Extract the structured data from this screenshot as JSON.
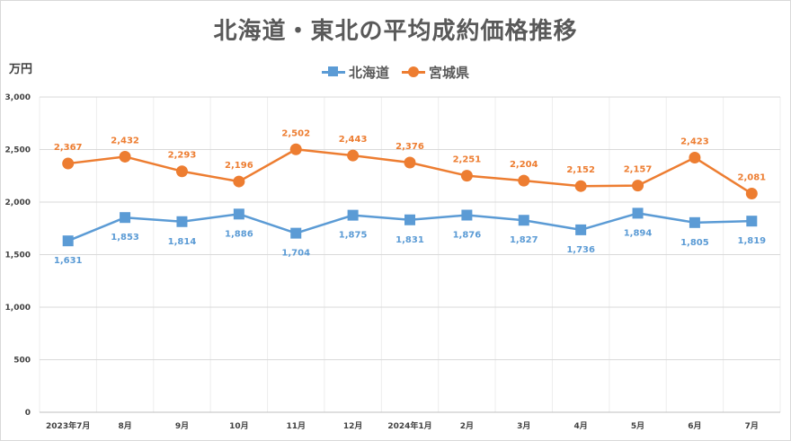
{
  "chart_data": {
    "type": "line",
    "title": "北海道・東北の平均成約価格推移",
    "ylabel": "万円",
    "xlabel": "",
    "categories": [
      "2023年7月",
      "8月",
      "9月",
      "10月",
      "11月",
      "12月",
      "2024年1月",
      "2月",
      "3月",
      "4月",
      "5月",
      "6月",
      "7月"
    ],
    "ylim": [
      0,
      3000
    ],
    "yticks": [
      0,
      500,
      1000,
      1500,
      2000,
      2500,
      3000
    ],
    "ytick_labels": [
      "0",
      "500",
      "1,000",
      "1,500",
      "2,000",
      "2,500",
      "3,000"
    ],
    "grid": true,
    "legend": "top-center",
    "data_labels": true,
    "series": [
      {
        "name": "北海道",
        "values": [
          1631,
          1853,
          1814,
          1886,
          1704,
          1875,
          1831,
          1876,
          1827,
          1736,
          1894,
          1805,
          1819
        ],
        "color": "#5B9BD5",
        "marker": "square",
        "label_position": "below"
      },
      {
        "name": "宮城県",
        "values": [
          2367,
          2432,
          2293,
          2196,
          2502,
          2443,
          2376,
          2251,
          2204,
          2152,
          2157,
          2423,
          2081
        ],
        "color": "#ED7D31",
        "marker": "circle",
        "label_position": "above"
      }
    ]
  }
}
